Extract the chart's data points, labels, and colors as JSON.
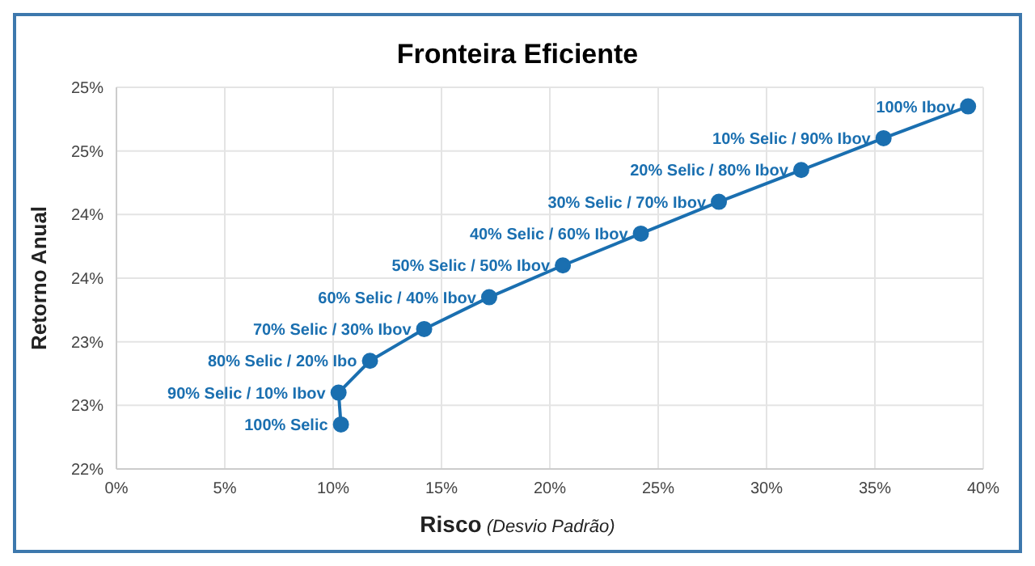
{
  "chart_data": {
    "type": "line",
    "title": "Fronteira Eficiente",
    "xlabel": "Risco (Desvio Padrão)",
    "ylabel": "Retorno Anual",
    "series": [
      {
        "color": "#1a6fb0",
        "x": [
          10.36,
          10.25,
          11.7,
          14.2,
          17.2,
          20.6,
          24.2,
          27.8,
          31.6,
          35.4,
          39.3
        ],
        "values": [
          22.35,
          22.6,
          22.85,
          23.1,
          23.35,
          23.6,
          23.85,
          24.1,
          24.35,
          24.6,
          24.85
        ]
      }
    ],
    "annotations": [
      {
        "text": "100% Selic",
        "x": 10.36,
        "y": 22.35
      },
      {
        "text": "90% Selic / 10% Ibov",
        "x": 10.25,
        "y": 22.6
      },
      {
        "text": "80% Selic / 20% Ibo",
        "x": 11.7,
        "y": 22.85
      },
      {
        "text": "70% Selic / 30% Ibov",
        "x": 14.2,
        "y": 23.1
      },
      {
        "text": "60% Selic / 40% Ibov",
        "x": 17.2,
        "y": 23.35
      },
      {
        "text": "50% Selic / 50% Ibov",
        "x": 20.6,
        "y": 23.6
      },
      {
        "text": "40% Selic / 60% Ibov",
        "x": 24.2,
        "y": 23.85
      },
      {
        "text": "30% Selic / 70% Ibov",
        "x": 27.8,
        "y": 24.1
      },
      {
        "text": "20% Selic / 80% Ibov",
        "x": 31.6,
        "y": 24.35
      },
      {
        "text": "10% Selic / 90% Ibov",
        "x": 35.4,
        "y": 24.6
      },
      {
        "text": "100% Ibov",
        "x": 39.3,
        "y": 24.85
      }
    ],
    "xlim": [
      0,
      40
    ],
    "xticks": [
      {
        "value": 0,
        "label": "0%"
      },
      {
        "value": 5,
        "label": "5%"
      },
      {
        "value": 10,
        "label": "10%"
      },
      {
        "value": 15,
        "label": "15%"
      },
      {
        "value": 20,
        "label": "20%"
      },
      {
        "value": 25,
        "label": "25%"
      },
      {
        "value": 30,
        "label": "30%"
      },
      {
        "value": 35,
        "label": "35%"
      },
      {
        "value": 40,
        "label": "40%"
      }
    ],
    "ylim": [
      22,
      25
    ],
    "yticks": [
      {
        "value": 22,
        "label": "22%"
      },
      {
        "value": 22.5,
        "label": "23%"
      },
      {
        "value": 23,
        "label": "23%"
      },
      {
        "value": 23.5,
        "label": "24%"
      },
      {
        "value": 24,
        "label": "24%"
      },
      {
        "value": 24.5,
        "label": "25%"
      },
      {
        "value": 25,
        "label": "25%"
      }
    ],
    "grid": true,
    "marker": "circle",
    "line_style": "solid",
    "legend": false
  }
}
